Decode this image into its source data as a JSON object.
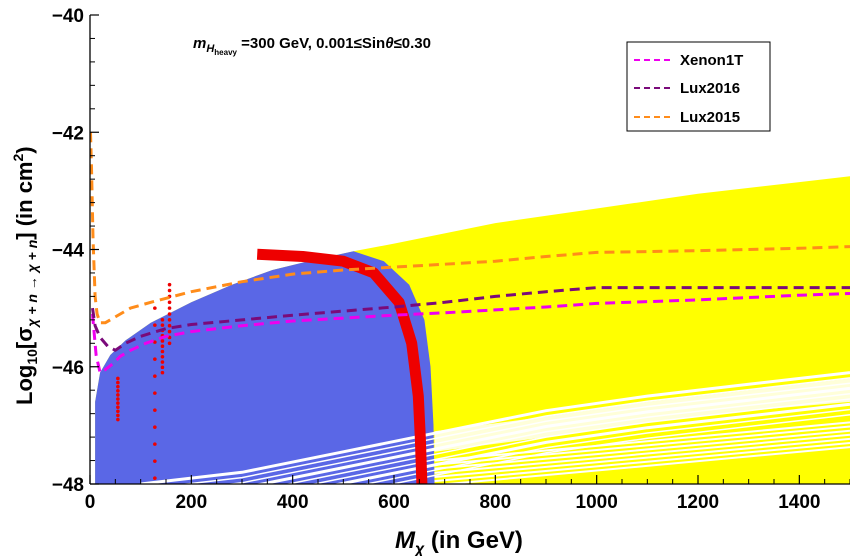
{
  "chart_data": {
    "type": "scatter",
    "annotation": {
      "m_symbol": "m",
      "sub_H": "H",
      "sub_heavy": "heavy",
      "text": " =300 GeV, 0.001≤Sin",
      "theta": "θ",
      "range_text": "≤0.30"
    },
    "xlabel": {
      "symbol": "M",
      "subscript": "χ",
      "unit": " (in GeV)"
    },
    "ylabel": {
      "prefix": "Log",
      "base": "10",
      "bracket_open": "[σ",
      "subscript": "χ + n → χ + n",
      "unit": "] (in cm",
      "sup": "2",
      "close": ")"
    },
    "xlim": [
      0,
      1500
    ],
    "ylim": [
      -48,
      -40
    ],
    "x_ticks": [
      0,
      200,
      400,
      600,
      800,
      1000,
      1200,
      1400
    ],
    "y_ticks": [
      -48,
      -46,
      -44,
      -42,
      -40
    ],
    "x_tick_labels": [
      "0",
      "200",
      "400",
      "600",
      "800",
      "1000",
      "1200",
      "1400"
    ],
    "y_tick_labels": [
      "−48",
      "−46",
      "−44",
      "−42",
      "−40"
    ],
    "colors": {
      "blue_region": "#5a67e6",
      "yellow_region": "#ffff00",
      "red_region": "#ee0000",
      "xenon": "#ee00ee",
      "lux2016": "#7a0a7a",
      "lux2015": "#ff8c1a"
    },
    "regions": {
      "blue_upper": [
        [
          10,
          -48
        ],
        [
          10,
          -46.6
        ],
        [
          20,
          -46.1
        ],
        [
          40,
          -45.8
        ],
        [
          70,
          -45.55
        ],
        [
          120,
          -45.25
        ],
        [
          200,
          -44.9
        ],
        [
          280,
          -44.6
        ],
        [
          360,
          -44.35
        ],
        [
          440,
          -44.18
        ],
        [
          510,
          -44.05
        ],
        [
          520,
          -44.03
        ]
      ],
      "yellow_upper": [
        [
          520,
          -44.03
        ],
        [
          600,
          -43.9
        ],
        [
          800,
          -43.55
        ],
        [
          1000,
          -43.3
        ],
        [
          1200,
          -43.05
        ],
        [
          1400,
          -42.85
        ],
        [
          1500,
          -42.75
        ]
      ],
      "blue_right_edge": [
        [
          520,
          -44.03
        ],
        [
          580,
          -44.2
        ],
        [
          630,
          -44.6
        ],
        [
          660,
          -45.2
        ],
        [
          672,
          -46.0
        ],
        [
          678,
          -47.0
        ],
        [
          680,
          -48.0
        ]
      ],
      "lower_white_edge": [
        [
          100,
          -48
        ],
        [
          300,
          -47.8
        ],
        [
          500,
          -47.45
        ],
        [
          700,
          -47.1
        ],
        [
          900,
          -46.75
        ],
        [
          1100,
          -46.5
        ],
        [
          1300,
          -46.3
        ],
        [
          1500,
          -46.1
        ]
      ],
      "red_band": [
        [
          330,
          -44.08
        ],
        [
          420,
          -44.12
        ],
        [
          500,
          -44.2
        ],
        [
          560,
          -44.4
        ],
        [
          610,
          -44.9
        ],
        [
          635,
          -45.6
        ],
        [
          648,
          -46.5
        ],
        [
          652,
          -47.2
        ],
        [
          655,
          -48.0
        ]
      ],
      "red_dots": [
        {
          "x": 55,
          "y": [
            -46.2,
            -46.9
          ]
        },
        {
          "x": 128,
          "y": [
            -45.0,
            -47.9
          ]
        },
        {
          "x": 143,
          "y": [
            -45.2,
            -46.1
          ]
        },
        {
          "x": 157,
          "y": [
            -44.6,
            -45.6
          ]
        }
      ]
    },
    "series": [
      {
        "name": "Xenon1T",
        "x": [
          5,
          12,
          20,
          30,
          45,
          60,
          80,
          110,
          150,
          200,
          300,
          400,
          500,
          600,
          700,
          800,
          900,
          1000,
          1200,
          1400,
          1500
        ],
        "y": [
          -45.1,
          -45.8,
          -46.1,
          -46.05,
          -45.95,
          -45.82,
          -45.72,
          -45.6,
          -45.48,
          -45.4,
          -45.3,
          -45.22,
          -45.17,
          -45.12,
          -45.08,
          -45.03,
          -44.98,
          -44.92,
          -44.86,
          -44.78,
          -44.75
        ]
      },
      {
        "name": "Lux2016",
        "x": [
          5,
          10,
          20,
          35,
          50,
          70,
          100,
          150,
          200,
          300,
          400,
          500,
          600,
          700,
          800,
          900,
          1000,
          1200,
          1400,
          1500
        ],
        "y": [
          -45.0,
          -45.3,
          -45.5,
          -45.65,
          -45.72,
          -45.6,
          -45.48,
          -45.35,
          -45.28,
          -45.2,
          -45.12,
          -45.05,
          -44.98,
          -44.9,
          -44.8,
          -44.72,
          -44.65,
          -44.65,
          -44.65,
          -44.65
        ]
      },
      {
        "name": "Lux2015",
        "x": [
          1,
          3,
          6,
          10,
          14,
          20,
          30,
          50,
          80,
          120,
          200,
          300,
          400,
          500,
          600,
          700,
          800,
          900,
          1000,
          1200,
          1400,
          1500
        ],
        "y": [
          -42.0,
          -42.6,
          -43.8,
          -44.8,
          -45.1,
          -45.25,
          -45.25,
          -45.15,
          -45.0,
          -44.9,
          -44.72,
          -44.55,
          -44.42,
          -44.35,
          -44.3,
          -44.25,
          -44.2,
          -44.12,
          -44.05,
          -44.02,
          -43.98,
          -43.95
        ]
      }
    ],
    "legend": {
      "position": "top-right",
      "entries": [
        "Xenon1T",
        "Lux2016",
        "Lux2015"
      ]
    }
  }
}
